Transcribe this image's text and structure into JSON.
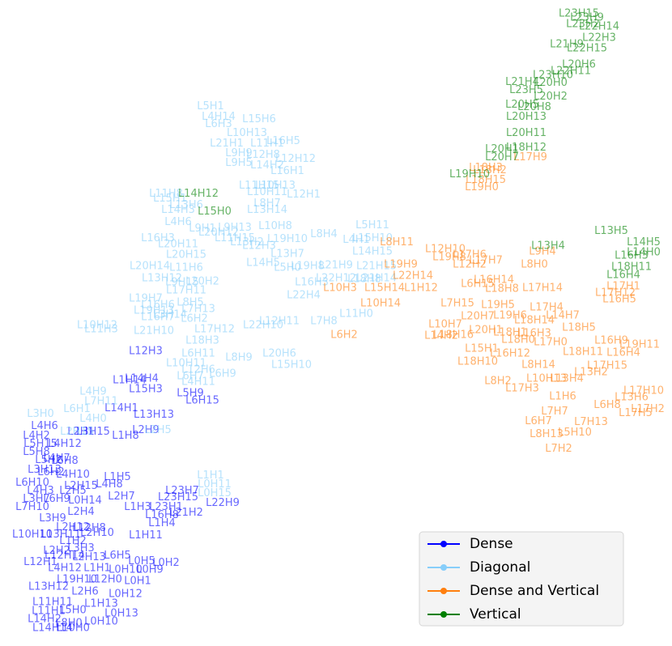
{
  "chart_data": {
    "type": "scatter",
    "legend": "lower right",
    "xlim": [
      0,
      83
    ],
    "ylim": [
      80,
      0
    ],
    "series": [
      {
        "name": "Dense",
        "color": "#0000ff",
        "labels": [
          "L12H3",
          "L14H4",
          "L1H14",
          "L15H3",
          "L5H9",
          "L6H15",
          "L14H1",
          "L13H13",
          "L4H6",
          "L2H1",
          "L3H15",
          "L2H9",
          "L1H8",
          "L4H2",
          "L5H15",
          "L4H12",
          "L5H8",
          "L4H7",
          "L5H2",
          "L6H8",
          "L3H13",
          "L6H2",
          "L4H10",
          "L1H5",
          "L4H8",
          "L6H10",
          "L4H3",
          "L2H15",
          "L2H5",
          "L2H7",
          "L3H7",
          "L6H9",
          "L0H14",
          "L7H10",
          "L2H4",
          "L1H3",
          "L23H7",
          "L23H15",
          "L23H1",
          "L21H2",
          "L22H9",
          "L16H8",
          "L1H4",
          "L3H9",
          "L2H12",
          "L12H8",
          "L2H10",
          "L1H11",
          "L10H10",
          "L13H11",
          "L1H2",
          "L2H2",
          "L3H3",
          "L12H14",
          "L2H13",
          "L12H1",
          "L6H5",
          "L0H5",
          "L4H12",
          "L1H1",
          "L0H2",
          "L0H10",
          "L0H9",
          "L19H10",
          "L12H0",
          "L0H1",
          "L13H12",
          "L2H6",
          "L0H12",
          "L11H11",
          "L1H13",
          "L11H1",
          "L5H0",
          "L0H13",
          "L14H2",
          "L8H0",
          "L0H10",
          "L14H14",
          "L10H0"
        ],
        "x": [
          18,
          17.5,
          16,
          18,
          23.5,
          25,
          15,
          19,
          5.5,
          10,
          11.5,
          18,
          15.5,
          4.5,
          5,
          8,
          4.5,
          7,
          6,
          8,
          5.5,
          6.3,
          9,
          14.5,
          13.5,
          4,
          5,
          10,
          9,
          15,
          4.5,
          7,
          10.5,
          4,
          10,
          17,
          22.5,
          22,
          20.5,
          23,
          27.5,
          20,
          20,
          6.5,
          9,
          11,
          12,
          18,
          4,
          7.5,
          9,
          7,
          10,
          8,
          11,
          5,
          14.5,
          17.5,
          8,
          12,
          20.5,
          15.5,
          18.5,
          9.5,
          13,
          17,
          6,
          10.5,
          15.5,
          6.5,
          12.5,
          6,
          9,
          15,
          5.5,
          8.5,
          12.5,
          6.5,
          9
        ],
        "y": [
          43.5,
          46.9,
          47.1,
          48.2,
          48.7,
          49.6,
          50.6,
          51.4,
          52.8,
          53.5,
          53.5,
          53.3,
          54,
          54,
          55,
          55,
          56,
          56.8,
          57,
          57.1,
          58.2,
          58.5,
          58.8,
          59.1,
          60,
          59.8,
          60.8,
          60.2,
          60.8,
          61.5,
          61.8,
          61.8,
          62,
          62.8,
          63.4,
          62.8,
          60.8,
          61.6,
          62.8,
          63.5,
          62.3,
          63.8,
          64.8,
          64.2,
          65.3,
          65.4,
          66,
          66.3,
          66.2,
          66.2,
          67,
          68.2,
          67.9,
          68.8,
          69,
          69.6,
          68.8,
          69.5,
          70.4,
          70.4,
          69.7,
          70.6,
          70.6,
          71.8,
          71.8,
          72,
          72.7,
          73.3,
          73.6,
          74.6,
          74.8,
          75.7,
          75.6,
          76,
          76.7,
          77.2,
          77,
          77.8,
          77.8
        ]
      },
      {
        "name": "Diagonal",
        "color": "#87cefa",
        "labels": [
          "L5H1",
          "L4H14",
          "L6H3",
          "L15H6",
          "L10H13",
          "L21H1",
          "L11H1",
          "L16H5",
          "L9H9",
          "L12H8",
          "L12H12",
          "L9H5",
          "L14H2",
          "L16H1",
          "L11H15",
          "L10H13",
          "L10H11",
          "L12H1",
          "L11H8",
          "L15H1",
          "L8H7",
          "L13H6",
          "L14H3",
          "L13H14",
          "L5H11",
          "L8H4",
          "L4H1",
          "L15H10",
          "L4H6",
          "L9H1",
          "L9H13",
          "L10H8",
          "L16H3",
          "L20H12",
          "L11H15",
          "L19H10",
          "L20H11",
          "L13H2",
          "L12H3",
          "L14H15",
          "L20H15",
          "L13H7",
          "L14H5",
          "L5H0",
          "L19H8",
          "L21H9",
          "L20H14",
          "L11H6",
          "L21H15",
          "L13H12",
          "L21H14",
          "L22H12",
          "L18H8",
          "L16H3",
          "L9H15",
          "L20H2",
          "L17H11",
          "L22H4",
          "L19H7",
          "L16H6",
          "L19H13",
          "L8H5",
          "L7H13",
          "L16H7",
          "L3H14",
          "L6H2",
          "L17H12",
          "L12H11",
          "L11H0",
          "L7H8",
          "L11H3",
          "L10H12",
          "L21H10",
          "L22H10",
          "L18H3",
          "L20H6",
          "L15H10",
          "L8H9",
          "L6H11",
          "L10H11",
          "L12H6",
          "L6H9",
          "L6H7",
          "L4H11",
          "L4H9",
          "L7H11",
          "L3H0",
          "L6H1",
          "L4H0",
          "L2H15",
          "L2H5",
          "L1H1",
          "L0H11",
          "L0H15"
        ],
        "x": [
          26,
          27,
          27,
          32,
          30.5,
          28,
          33,
          35,
          29.5,
          32.5,
          36.5,
          29.5,
          33,
          35.5,
          32,
          34,
          33,
          37.5,
          20.5,
          21,
          33,
          23,
          22,
          33,
          46,
          40,
          44,
          46,
          22,
          25,
          29,
          34,
          19.5,
          27,
          29,
          35.5,
          22,
          30.5,
          32,
          46,
          23,
          35.5,
          32.5,
          35.5,
          38,
          41.5,
          18.5,
          23,
          46.5,
          20,
          46.5,
          41.5,
          45,
          38.5,
          22.5,
          25,
          23,
          37.5,
          18,
          19.5,
          19,
          23.5,
          24.5,
          19.5,
          21,
          24,
          26.5,
          34.5,
          44,
          40,
          12.5,
          12,
          19,
          32.5,
          25,
          34.5,
          36,
          29.5,
          24.5,
          23,
          24.5,
          27.5,
          23.5,
          24.5,
          11.5,
          12.5,
          5,
          9.5,
          11.5,
          9.5,
          19.5,
          26,
          26.5,
          26.5
        ],
        "y": [
          13.2,
          14.5,
          15.4,
          14.8,
          16.5,
          17.8,
          17.8,
          17.5,
          19,
          19.2,
          19.7,
          20.2,
          20.5,
          21.2,
          23,
          23,
          23.8,
          24.1,
          24,
          24.6,
          25.2,
          25.4,
          26,
          26,
          27.9,
          29,
          29.7,
          29.5,
          27.5,
          28.3,
          28.2,
          28,
          29.5,
          28.8,
          29.5,
          29.6,
          30.3,
          30,
          30.5,
          31.2,
          31.6,
          31.5,
          32.6,
          33.2,
          33,
          32.9,
          33,
          33.2,
          33,
          34.5,
          34.5,
          34.5,
          34.6,
          35,
          35,
          34.9,
          36,
          36.6,
          37,
          37.8,
          38.5,
          37.5,
          38.3,
          39.3,
          39,
          39.5,
          40.8,
          39.8,
          38.9,
          39.8,
          40.8,
          40.3,
          41,
          40.3,
          42.2,
          43.8,
          45.2,
          44.3,
          43.8,
          45,
          45.8,
          46.3,
          46.6,
          47.3,
          48.5,
          49.7,
          51.3,
          50.7,
          51.9,
          53.5,
          53.3,
          58.9,
          60,
          61.1
        ]
      },
      {
        "name": "Dense and Vertical",
        "color": "#ff7f0e",
        "labels": [
          "L17H9",
          "L18H3",
          "L18H2",
          "L18H15",
          "L19H0",
          "L8H11",
          "L12H10",
          "L19H8",
          "L17H6",
          "L12H2",
          "L17H7",
          "L9H4",
          "L8H0",
          "L19H9",
          "L22H14",
          "L10H3",
          "L15H14",
          "L1H12",
          "L10H14",
          "L6H2",
          "L6H15",
          "L16H14",
          "L18H8",
          "L17H14",
          "L7H15",
          "L17H4",
          "L19H5",
          "L20H7",
          "L19H6",
          "L14H7",
          "L10H7",
          "L20H1",
          "L18H14",
          "L18H5",
          "L18H16",
          "L14H2",
          "L18H1",
          "L16H3",
          "L18H0",
          "L15H1",
          "L16H9",
          "L17H0",
          "L19H11",
          "L16H12",
          "L18H11",
          "L16H4",
          "L18H10",
          "L8H14",
          "L17H15",
          "L13H2",
          "L10H13",
          "L13H4",
          "L8H2",
          "L17H3",
          "L17H10",
          "L1H6",
          "L13H6",
          "L6H8",
          "L17H2",
          "L7H7",
          "L6H7",
          "L7H13",
          "L8H13",
          "L5H10",
          "L7H2",
          "L17H5",
          "L16H5",
          "L17H1",
          "L17H12"
        ],
        "x": [
          65.5,
          60,
          60.5,
          60,
          59.5,
          49,
          55,
          55.5,
          58,
          58,
          60,
          67,
          66,
          49.5,
          51,
          42,
          47.5,
          52,
          47,
          42.5,
          59,
          61,
          62,
          67,
          56.5,
          67.5,
          61.5,
          59,
          63,
          69.5,
          55,
          60,
          66,
          71.5,
          56,
          54.5,
          63,
          66,
          64,
          59.5,
          75.5,
          68,
          79,
          63,
          72,
          77,
          59,
          66.5,
          75,
          73,
          67.5,
          70,
          61.5,
          64.5,
          79.5,
          69.5,
          78,
          75,
          80,
          68.5,
          66.5,
          73,
          67.5,
          71,
          69,
          78.5,
          76.5,
          77,
          76
        ],
        "y": [
          19.5,
          20.8,
          21.1,
          22.3,
          23.2,
          30,
          30.9,
          31.9,
          31.6,
          32.8,
          32.3,
          31.2,
          32.8,
          32.8,
          34.2,
          35.7,
          35.7,
          35.7,
          37.6,
          41.5,
          35.2,
          34.7,
          35.8,
          35.7,
          37.6,
          38.1,
          37.8,
          39.2,
          39.1,
          39.1,
          40.2,
          40.9,
          39.7,
          40.6,
          41.5,
          41.6,
          41.2,
          41.3,
          42.1,
          43.2,
          42.2,
          42.4,
          42.7,
          43.8,
          43.6,
          43.7,
          44.8,
          45.2,
          45.3,
          46.1,
          46.9,
          46.9,
          47.2,
          48.1,
          48.4,
          49.1,
          49.2,
          50.2,
          50.7,
          51,
          52.2,
          52.3,
          53.8,
          53.6,
          55.6,
          51.2,
          37.1,
          35.5,
          36.3
        ]
      },
      {
        "name": "Vertical",
        "color": "#008000",
        "labels": [
          "L23H15",
          "L23H9",
          "L22H14",
          "L23H2",
          "L22H3",
          "L21H9",
          "L22H15",
          "L20H6",
          "L23H10",
          "L22H11",
          "L21H4",
          "L20H0",
          "L23H5",
          "L20H2",
          "L20H5",
          "L20H8",
          "L20H13",
          "L20H11",
          "L18H12",
          "L20H1",
          "L20H7",
          "L14H12",
          "L15H0",
          "L19H10",
          "L13H4",
          "L13H5",
          "L14H5",
          "L14H0",
          "L16H3",
          "L18H11",
          "L16H4"
        ],
        "x": [
          71.5,
          72.5,
          74,
          72,
          74,
          70,
          72.5,
          71.5,
          68.3,
          70.5,
          64.5,
          68,
          65,
          68,
          64.5,
          66,
          65,
          65,
          65,
          62,
          62,
          24.5,
          26.5,
          58,
          67.7,
          75.5,
          79.5,
          79.5,
          78,
          78,
          77
        ],
        "y": [
          1.7,
          2.2,
          3.3,
          3,
          4.7,
          5.5,
          6,
          8,
          9.3,
          8.8,
          10.2,
          10.3,
          11.2,
          12,
          13,
          13.3,
          14.5,
          16.5,
          18.3,
          18.5,
          19.5,
          24,
          26.2,
          21.6,
          30.5,
          28.6,
          30,
          31.3,
          31.7,
          33.1,
          34.1
        ]
      }
    ]
  }
}
